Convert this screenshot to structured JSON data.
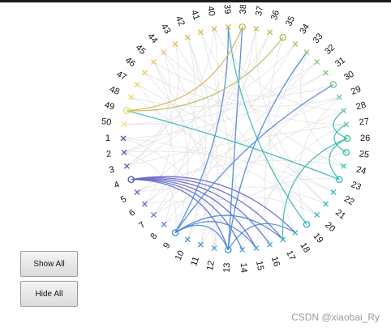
{
  "controls": {
    "show_all_label": "Show All",
    "hide_all_label": "Hide All"
  },
  "watermark": "CSDN @xiaobai_Ry",
  "colors": {
    "background_link": "#e3e3e3",
    "marker_hue_sequence": "purple-blue-teal-green-yellow",
    "link_blue": "#4a86d8",
    "link_purple": "#6a66c4",
    "link_teal": "#3bb8b8",
    "link_olive": "#b8bc62",
    "link_gold": "#e0b24e"
  },
  "chart_data": {
    "type": "chord-diagram",
    "node_order": [
      "1",
      "2",
      "3",
      "4",
      "5",
      "6",
      "7",
      "8",
      "9",
      "10",
      "11",
      "12",
      "13",
      "14",
      "15",
      "16",
      "17",
      "18",
      "19",
      "20",
      "21",
      "22",
      "23",
      "24",
      "25",
      "26",
      "27",
      "28",
      "29",
      "30",
      "31",
      "32",
      "33",
      "34",
      "35",
      "36",
      "37",
      "38",
      "39",
      "40",
      "41",
      "42",
      "43",
      "44",
      "45",
      "46",
      "47",
      "48",
      "49",
      "50"
    ],
    "nodes": [
      {
        "label": "1",
        "marker": "x",
        "color": "#5a4fa6"
      },
      {
        "label": "2",
        "marker": "x",
        "color": "#5a4fa6"
      },
      {
        "label": "3",
        "marker": "x",
        "color": "#5c55b0"
      },
      {
        "label": "4",
        "marker": "o",
        "color": "#5d5ac0"
      },
      {
        "label": "5",
        "marker": "x",
        "color": "#5e62c8"
      },
      {
        "label": "6",
        "marker": "x",
        "color": "#5b6cd0"
      },
      {
        "label": "7",
        "marker": "x",
        "color": "#5578d8"
      },
      {
        "label": "8",
        "marker": "x",
        "color": "#4f82dc"
      },
      {
        "label": "9",
        "marker": "o",
        "color": "#4a8cdf"
      },
      {
        "label": "10",
        "marker": "x",
        "color": "#4792de"
      },
      {
        "label": "11",
        "marker": "x",
        "color": "#4496dc"
      },
      {
        "label": "12",
        "marker": "x",
        "color": "#419bda"
      },
      {
        "label": "13",
        "marker": "o",
        "color": "#3ea0d8"
      },
      {
        "label": "14",
        "marker": "x",
        "color": "#3ca4d5"
      },
      {
        "label": "15",
        "marker": "x",
        "color": "#3aa8d2"
      },
      {
        "label": "16",
        "marker": "x",
        "color": "#38acce"
      },
      {
        "label": "17",
        "marker": "x",
        "color": "#37b0ca"
      },
      {
        "label": "18",
        "marker": "x",
        "color": "#36b3c6"
      },
      {
        "label": "19",
        "marker": "o",
        "color": "#35b6c1"
      },
      {
        "label": "20",
        "marker": "x",
        "color": "#35b8bc"
      },
      {
        "label": "21",
        "marker": "x",
        "color": "#36bab7"
      },
      {
        "label": "22",
        "marker": "x",
        "color": "#38bcb2"
      },
      {
        "label": "23",
        "marker": "o",
        "color": "#3bbead"
      },
      {
        "label": "24",
        "marker": "x",
        "color": "#3fc0a8"
      },
      {
        "label": "25",
        "marker": "o",
        "color": "#44c2a2"
      },
      {
        "label": "26",
        "marker": "o",
        "color": "#4ac39c"
      },
      {
        "label": "27",
        "marker": "x",
        "color": "#51c496"
      },
      {
        "label": "28",
        "marker": "x",
        "color": "#59c58f"
      },
      {
        "label": "29",
        "marker": "x",
        "color": "#62c688"
      },
      {
        "label": "30",
        "marker": "o",
        "color": "#6cc681"
      },
      {
        "label": "31",
        "marker": "x",
        "color": "#77c67a"
      },
      {
        "label": "32",
        "marker": "x",
        "color": "#82c673"
      },
      {
        "label": "33",
        "marker": "x",
        "color": "#8ec56c"
      },
      {
        "label": "34",
        "marker": "x",
        "color": "#9ac466"
      },
      {
        "label": "35",
        "marker": "o",
        "color": "#a6c260"
      },
      {
        "label": "36",
        "marker": "x",
        "color": "#b2c05b"
      },
      {
        "label": "37",
        "marker": "x",
        "color": "#bdbe57"
      },
      {
        "label": "38",
        "marker": "o",
        "color": "#c8bb54"
      },
      {
        "label": "39",
        "marker": "x",
        "color": "#d2b853"
      },
      {
        "label": "40",
        "marker": "x",
        "color": "#dbb553"
      },
      {
        "label": "41",
        "marker": "x",
        "color": "#e3b355"
      },
      {
        "label": "42",
        "marker": "x",
        "color": "#e8b458"
      },
      {
        "label": "43",
        "marker": "x",
        "color": "#ebb85a"
      },
      {
        "label": "44",
        "marker": "x",
        "color": "#ecbd5c"
      },
      {
        "label": "45",
        "marker": "x",
        "color": "#edc35d"
      },
      {
        "label": "46",
        "marker": "x",
        "color": "#eec95e"
      },
      {
        "label": "47",
        "marker": "x",
        "color": "#efcf5f"
      },
      {
        "label": "48",
        "marker": "x",
        "color": "#f0d55f"
      },
      {
        "label": "49",
        "marker": "o",
        "color": "#f1db5f"
      },
      {
        "label": "50",
        "marker": "x",
        "color": "#f2e060"
      }
    ],
    "highlighted_links": [
      {
        "source": "4",
        "target": "15",
        "color": "#6a66c4"
      },
      {
        "source": "4",
        "target": "16",
        "color": "#6a66c4"
      },
      {
        "source": "4",
        "target": "17",
        "color": "#6a66c4"
      },
      {
        "source": "4",
        "target": "18",
        "color": "#6a66c4"
      },
      {
        "source": "4",
        "target": "13",
        "color": "#5d6fd0"
      },
      {
        "source": "4",
        "target": "14",
        "color": "#5d6fd0"
      },
      {
        "source": "9",
        "target": "13",
        "color": "#4a86d8"
      },
      {
        "source": "9",
        "target": "15",
        "color": "#4a86d8"
      },
      {
        "source": "9",
        "target": "17",
        "color": "#4a86d8"
      },
      {
        "source": "9",
        "target": "30",
        "color": "#4a86d8"
      },
      {
        "source": "9",
        "target": "39",
        "color": "#4a86d8"
      },
      {
        "source": "13",
        "target": "38",
        "color": "#4a86d8"
      },
      {
        "source": "13",
        "target": "33",
        "color": "#4a86d8"
      },
      {
        "source": "13",
        "target": "18",
        "color": "#4a86d8"
      },
      {
        "source": "19",
        "target": "39",
        "color": "#3bb8b8"
      },
      {
        "source": "17",
        "target": "26",
        "color": "#3bb8b8"
      },
      {
        "source": "23",
        "target": "26",
        "color": "#3bb8b8"
      },
      {
        "source": "25",
        "target": "27",
        "color": "#3bb8b8"
      },
      {
        "source": "49",
        "target": "23",
        "color": "#3bb8b8"
      },
      {
        "source": "35",
        "target": "49",
        "color": "#b8bc62"
      },
      {
        "source": "38",
        "target": "49",
        "color": "#e0b24e"
      },
      {
        "source": "26",
        "target": "28",
        "color": "#3bb8b8"
      }
    ],
    "background_links": [
      [
        "1",
        "20"
      ],
      [
        "1",
        "31"
      ],
      [
        "2",
        "22"
      ],
      [
        "2",
        "40"
      ],
      [
        "3",
        "27"
      ],
      [
        "3",
        "44"
      ],
      [
        "5",
        "24"
      ],
      [
        "5",
        "36"
      ],
      [
        "6",
        "29"
      ],
      [
        "6",
        "45"
      ],
      [
        "7",
        "21"
      ],
      [
        "7",
        "34"
      ],
      [
        "8",
        "32"
      ],
      [
        "8",
        "47"
      ],
      [
        "10",
        "28"
      ],
      [
        "10",
        "42"
      ],
      [
        "11",
        "23"
      ],
      [
        "11",
        "37"
      ],
      [
        "12",
        "30"
      ],
      [
        "12",
        "46"
      ],
      [
        "14",
        "25"
      ],
      [
        "14",
        "41"
      ],
      [
        "16",
        "33"
      ],
      [
        "16",
        "48"
      ],
      [
        "18",
        "35"
      ],
      [
        "20",
        "43"
      ],
      [
        "21",
        "39"
      ],
      [
        "22",
        "47"
      ],
      [
        "24",
        "41"
      ],
      [
        "27",
        "44"
      ],
      [
        "29",
        "46"
      ],
      [
        "31",
        "48"
      ],
      [
        "32",
        "50"
      ],
      [
        "34",
        "50"
      ],
      [
        "36",
        "2"
      ],
      [
        "37",
        "6"
      ],
      [
        "40",
        "10"
      ],
      [
        "42",
        "12"
      ],
      [
        "43",
        "3"
      ],
      [
        "45",
        "9"
      ],
      [
        "1",
        "12"
      ],
      [
        "5",
        "16"
      ],
      [
        "8",
        "20"
      ],
      [
        "2",
        "9"
      ],
      [
        "30",
        "45"
      ],
      [
        "24",
        "33"
      ],
      [
        "15",
        "27"
      ],
      [
        "19",
        "29"
      ],
      [
        "6",
        "14"
      ],
      [
        "11",
        "44"
      ],
      [
        "21",
        "37"
      ],
      [
        "3",
        "38"
      ],
      [
        "28",
        "40"
      ],
      [
        "7",
        "42"
      ]
    ]
  }
}
